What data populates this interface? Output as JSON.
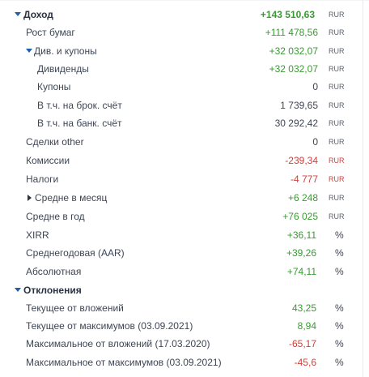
{
  "rows": [
    {
      "label": "Доход",
      "value": "+143 510,63",
      "unit": "RUR"
    },
    {
      "label": "Рост бумаг",
      "value": "+111 478,56",
      "unit": "RUR"
    },
    {
      "label": "Див. и купоны",
      "value": "+32 032,07",
      "unit": "RUR"
    },
    {
      "label": "Дивиденды",
      "value": "+32 032,07",
      "unit": "RUR"
    },
    {
      "label": "Купоны",
      "value": "0",
      "unit": "RUR"
    },
    {
      "label": "В т.ч. на брок. счёт",
      "value": "1 739,65",
      "unit": "RUR"
    },
    {
      "label": "В т.ч. на банк. счёт",
      "value": "30 292,42",
      "unit": "RUR"
    },
    {
      "label": "Сделки other",
      "value": "0",
      "unit": "RUR"
    },
    {
      "label": "Комиссии",
      "value": "-239,34",
      "unit": "RUR"
    },
    {
      "label": "Налоги",
      "value": "-4 777",
      "unit": "RUR"
    },
    {
      "label": "Средне в месяц",
      "value": "+6 248",
      "unit": "RUR"
    },
    {
      "label": "Средне в год",
      "value": "+76 025",
      "unit": "RUR"
    },
    {
      "label": "XIRR",
      "value": "+36,11",
      "unit": "%"
    },
    {
      "label": "Среднегодовая (AAR)",
      "value": "+39,26",
      "unit": "%"
    },
    {
      "label": "Абсолютная",
      "value": "+74,11",
      "unit": "%"
    },
    {
      "label": "Отклонения",
      "value": "",
      "unit": ""
    },
    {
      "label": "Текущее от вложений",
      "value": "43,25",
      "unit": "%"
    },
    {
      "label": "Текущее от максимумов (03.09.2021)",
      "value": "8,94",
      "unit": "%"
    },
    {
      "label": "Максимальное от вложений (17.03.2020)",
      "value": "-65,17",
      "unit": "%"
    },
    {
      "label": "Максимальное от максимумов (03.09.2021)",
      "value": "-45,6",
      "unit": "%"
    }
  ]
}
